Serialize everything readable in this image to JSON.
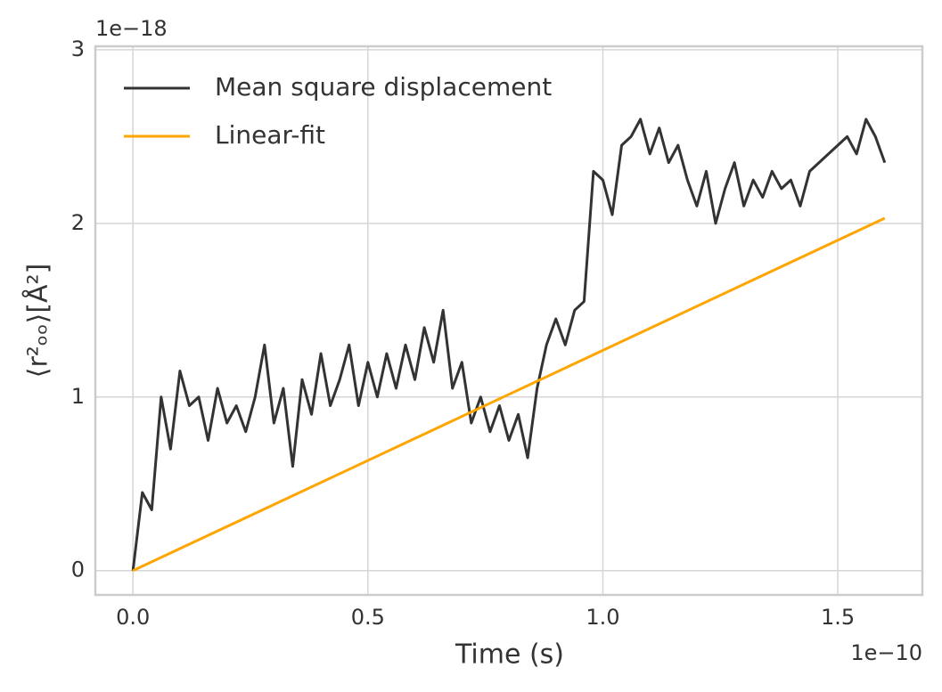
{
  "chart_data": {
    "type": "line",
    "xlabel": "Time (s)",
    "ylabel": "⟨r²ₒₒ⟩[Å²]",
    "x_offset_text": "1e−10",
    "y_offset_text": "1e−18",
    "xlim": [
      -0.08,
      1.68
    ],
    "ylim": [
      -0.14,
      3.02
    ],
    "xticks": [
      {
        "value": 0,
        "label": "0.0"
      },
      0.5,
      {
        "value": 1,
        "label": "1.0"
      },
      1.5
    ],
    "yticks": [
      0,
      1,
      2,
      3
    ],
    "grid": true,
    "legend": "upper left",
    "series": [
      {
        "name": "Mean square displacement",
        "color": "#333333",
        "x": [
          0,
          0.02,
          0.04,
          0.06,
          0.08,
          0.1,
          0.12,
          0.14,
          0.16,
          0.18,
          0.2,
          0.22,
          0.24,
          0.26,
          0.28,
          0.3,
          0.32,
          0.34,
          0.36,
          0.38,
          0.4,
          0.42,
          0.44,
          0.46,
          0.48,
          0.5,
          0.52,
          0.54,
          0.56,
          0.58,
          0.6,
          0.62,
          0.64,
          0.66,
          0.68,
          0.7,
          0.72,
          0.74,
          0.76,
          0.78,
          0.8,
          0.82,
          0.84,
          0.86,
          0.88,
          0.9,
          0.92,
          0.94,
          0.96,
          0.98,
          1,
          1.02,
          1.04,
          1.06,
          1.08,
          1.1,
          1.12,
          1.14,
          1.16,
          1.18,
          1.2,
          1.22,
          1.24,
          1.26,
          1.28,
          1.3,
          1.32,
          1.34,
          1.36,
          1.38,
          1.4,
          1.42,
          1.44,
          1.46,
          1.48,
          1.5,
          1.52,
          1.54,
          1.56,
          1.58,
          1.6
        ],
        "values": [
          0,
          0.45,
          0.35,
          1.0,
          0.7,
          1.15,
          0.95,
          1.0,
          0.75,
          1.05,
          0.85,
          0.95,
          0.8,
          1.0,
          1.3,
          0.85,
          1.05,
          0.6,
          1.1,
          0.9,
          1.25,
          0.95,
          1.1,
          1.3,
          0.95,
          1.2,
          1.0,
          1.25,
          1.05,
          1.3,
          1.1,
          1.4,
          1.2,
          1.5,
          1.05,
          1.2,
          0.85,
          1.0,
          0.8,
          0.95,
          0.75,
          0.9,
          0.65,
          1.05,
          1.3,
          1.45,
          1.3,
          1.5,
          1.55,
          2.3,
          2.25,
          2.05,
          2.45,
          2.5,
          2.6,
          2.4,
          2.55,
          2.35,
          2.45,
          2.25,
          2.1,
          2.3,
          2.0,
          2.2,
          2.35,
          2.1,
          2.25,
          2.15,
          2.3,
          2.2,
          2.25,
          2.1,
          2.3,
          2.35,
          2.4,
          2.45,
          2.5,
          2.4,
          2.6,
          2.5,
          2.35
        ]
      },
      {
        "name": "Linear-fit",
        "color": "#ffa500",
        "x": [
          0,
          1.6
        ],
        "values": [
          0,
          2.03
        ]
      }
    ]
  }
}
